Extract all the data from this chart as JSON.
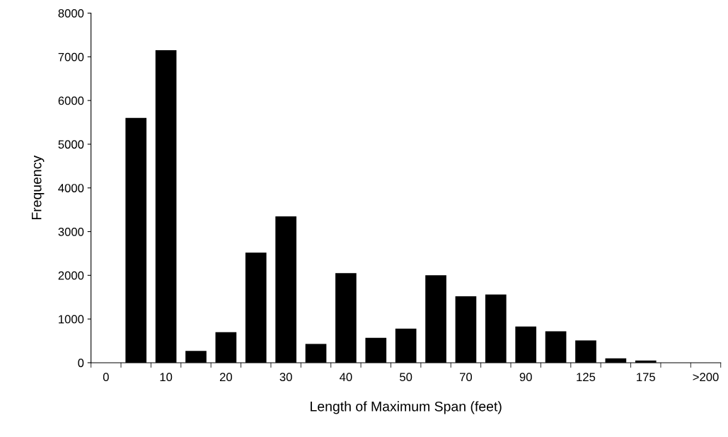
{
  "chart_data": {
    "type": "bar",
    "xlabel": "Length of Maximum Span (feet)",
    "ylabel": "Frequency",
    "categories": [
      "0",
      null,
      "10",
      null,
      "20",
      null,
      "30",
      null,
      "40",
      null,
      "50",
      null,
      "70",
      null,
      "90",
      null,
      "125",
      null,
      "175",
      null,
      ">200"
    ],
    "values": [
      0,
      5600,
      7150,
      270,
      700,
      2520,
      3350,
      430,
      2050,
      570,
      780,
      2000,
      1520,
      1560,
      830,
      720,
      510,
      100,
      50,
      0,
      0
    ],
    "color": "#000000",
    "ylim": [
      0,
      8000
    ],
    "yticks": [
      0,
      1000,
      2000,
      3000,
      4000,
      5000,
      6000,
      7000,
      8000
    ],
    "grid": false,
    "legend": false
  }
}
